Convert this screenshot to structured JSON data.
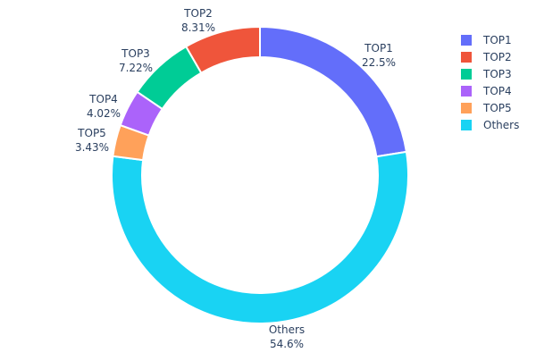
{
  "chart_data": {
    "type": "pie",
    "hole": true,
    "labels": [
      "TOP1",
      "TOP2",
      "TOP3",
      "TOP4",
      "TOP5",
      "Others"
    ],
    "values": [
      22.5,
      8.31,
      7.22,
      4.02,
      3.43,
      54.6
    ],
    "value_labels": [
      "22.5%",
      "8.31%",
      "7.22%",
      "4.02%",
      "3.43%",
      "54.6%"
    ],
    "colors": [
      "#636efa",
      "#EF553B",
      "#00cc96",
      "#ab63fa",
      "#FFA15A",
      "#19d3f3"
    ],
    "legend": {
      "placement": "top-right",
      "entries": [
        "TOP1",
        "TOP2",
        "TOP3",
        "TOP4",
        "TOP5",
        "Others"
      ]
    }
  }
}
